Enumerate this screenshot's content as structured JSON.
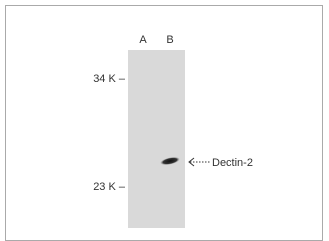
{
  "figure": {
    "lanes": [
      "A",
      "B"
    ],
    "markers": [
      "34 K –",
      "23 K –"
    ],
    "band_label": "Dectin-2"
  }
}
